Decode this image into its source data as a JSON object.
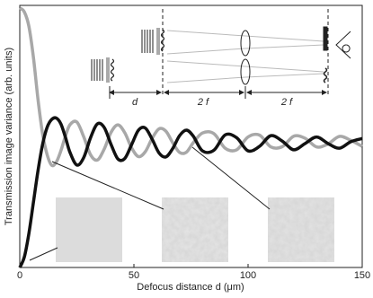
{
  "chart_data": {
    "type": "line",
    "xlabel": "Defocus distance d (μm)",
    "ylabel": "Transmission image variance (arb. units)",
    "annotations": [
      "d",
      "2 f",
      "2 f"
    ],
    "x": [
      0,
      2,
      4,
      6,
      8,
      10,
      12,
      14,
      16,
      18,
      20,
      22,
      25,
      28,
      31,
      34,
      37,
      40,
      43,
      46,
      49,
      52,
      55,
      58,
      61,
      64,
      67,
      70,
      73,
      76,
      80,
      85,
      90,
      95,
      100,
      105,
      110,
      115,
      120,
      125,
      130,
      135,
      140,
      145,
      150
    ],
    "series": [
      {
        "color": "#111111",
        "values": [
          0,
          0.04,
          0.13,
          0.25,
          0.37,
          0.47,
          0.535,
          0.565,
          0.57,
          0.548,
          0.497,
          0.439,
          0.391,
          0.419,
          0.495,
          0.548,
          0.534,
          0.469,
          0.414,
          0.416,
          0.469,
          0.524,
          0.532,
          0.489,
          0.437,
          0.422,
          0.454,
          0.503,
          0.524,
          0.501,
          0.445,
          0.447,
          0.506,
          0.495,
          0.445,
          0.462,
          0.503,
          0.482,
          0.449,
          0.473,
          0.498,
          0.473,
          0.455,
          0.48,
          0.492
        ]
      },
      {
        "color": "#a8a8a8",
        "values": [
          0.99,
          0.975,
          0.92,
          0.8,
          0.64,
          0.51,
          0.43,
          0.39,
          0.402,
          0.445,
          0.501,
          0.545,
          0.555,
          0.499,
          0.43,
          0.41,
          0.452,
          0.516,
          0.544,
          0.514,
          0.456,
          0.423,
          0.442,
          0.493,
          0.529,
          0.52,
          0.476,
          0.439,
          0.44,
          0.476,
          0.513,
          0.511,
          0.455,
          0.449,
          0.498,
          0.505,
          0.46,
          0.461,
          0.501,
          0.493,
          0.46,
          0.471,
          0.5,
          0.485,
          0.462
        ]
      }
    ],
    "xlim": [
      0,
      150
    ],
    "ylim": [
      0,
      1
    ],
    "xticks": [
      0,
      50,
      100,
      150
    ]
  }
}
